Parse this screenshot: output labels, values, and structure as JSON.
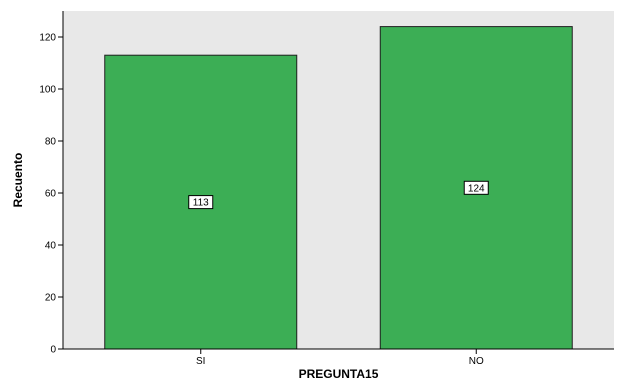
{
  "chart_data": {
    "type": "bar",
    "categories": [
      "SI",
      "NO"
    ],
    "values": [
      113,
      124
    ],
    "data_labels": [
      "113",
      "124"
    ],
    "xlabel": "PREGUNTA15",
    "ylabel": "Recuento",
    "ylim": [
      0,
      130
    ],
    "yticks": [
      0,
      20,
      40,
      60,
      80,
      100,
      120
    ],
    "ytick_labels": [
      "0",
      "20",
      "40",
      "60",
      "80",
      "100",
      "120"
    ],
    "grid": false,
    "colors": {
      "bar_fill": "#3cae55",
      "bar_stroke": "#1f1f1f",
      "plot_background": "#e8e8e8",
      "label_box_fill": "#ffffff",
      "label_box_stroke": "#000000"
    }
  }
}
